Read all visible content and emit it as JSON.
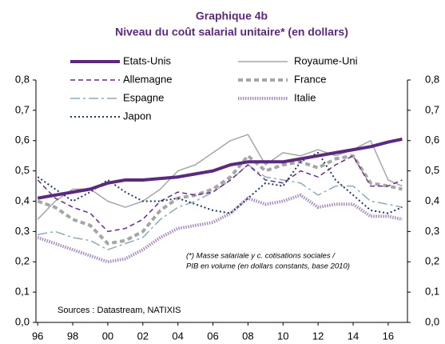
{
  "chart_data": {
    "type": "line",
    "title": "Graphique 4b",
    "subtitle": "Niveau du coût salarial unitaire* (en dollars)",
    "annotations": [
      "(*) Masse salariale y c. cotisations sociales /",
      "PIB en volume (en dollars constants, base 2010)"
    ],
    "source": "Sources : Datastream, NATIXIS",
    "x": [
      1996,
      1997,
      1998,
      1999,
      2000,
      2001,
      2002,
      2003,
      2004,
      2005,
      2006,
      2007,
      2008,
      2009,
      2010,
      2011,
      2012,
      2013,
      2014,
      2015,
      2016,
      2016.8
    ],
    "xlim": [
      1995.9,
      2017.1
    ],
    "xticks": [
      {
        "value": 1996,
        "label": "96"
      },
      {
        "value": 1998,
        "label": "98"
      },
      {
        "value": 2000,
        "label": "00"
      },
      {
        "value": 2002,
        "label": "02"
      },
      {
        "value": 2004,
        "label": "04"
      },
      {
        "value": 2006,
        "label": "06"
      },
      {
        "value": 2008,
        "label": "08"
      },
      {
        "value": 2010,
        "label": "10"
      },
      {
        "value": 2012,
        "label": "12"
      },
      {
        "value": 2014,
        "label": "14"
      },
      {
        "value": 2016,
        "label": "16"
      }
    ],
    "ylim": [
      0,
      0.8
    ],
    "yticks": [
      {
        "value": 0,
        "label": "0,0"
      },
      {
        "value": 0.1,
        "label": "0,1"
      },
      {
        "value": 0.2,
        "label": "0,2"
      },
      {
        "value": 0.3,
        "label": "0,3"
      },
      {
        "value": 0.4,
        "label": "0,4"
      },
      {
        "value": 0.5,
        "label": "0,5"
      },
      {
        "value": 0.6,
        "label": "0,6"
      },
      {
        "value": 0.7,
        "label": "0,7"
      },
      {
        "value": 0.8,
        "label": "0,8"
      }
    ],
    "y2lim": [
      0,
      0.8
    ],
    "y2ticks": [
      {
        "value": 0,
        "label": "0,0"
      },
      {
        "value": 0.1,
        "label": "0,1"
      },
      {
        "value": 0.2,
        "label": "0,2"
      },
      {
        "value": 0.3,
        "label": "0,3"
      },
      {
        "value": 0.4,
        "label": "0,4"
      },
      {
        "value": 0.5,
        "label": "0,5"
      },
      {
        "value": 0.6,
        "label": "0,6"
      },
      {
        "value": 0.7,
        "label": "0,7"
      },
      {
        "value": 0.8,
        "label": "0,8"
      }
    ],
    "grid": false,
    "legend": "top",
    "series": [
      {
        "name": "Etats-Unis",
        "color": "#5b2a7e",
        "style": "solid",
        "width": 4,
        "values": [
          0.41,
          0.42,
          0.43,
          0.44,
          0.46,
          0.47,
          0.47,
          0.475,
          0.48,
          0.49,
          0.5,
          0.52,
          0.53,
          0.53,
          0.53,
          0.54,
          0.55,
          0.56,
          0.57,
          0.58,
          0.595,
          0.605
        ]
      },
      {
        "name": "Royaume-Uni",
        "color": "#a6a6a6",
        "style": "solid",
        "width": 1.5,
        "values": [
          0.34,
          0.4,
          0.44,
          0.44,
          0.4,
          0.38,
          0.4,
          0.44,
          0.5,
          0.52,
          0.56,
          0.6,
          0.62,
          0.52,
          0.56,
          0.55,
          0.57,
          0.55,
          0.57,
          0.6,
          0.47,
          0.45
        ]
      },
      {
        "name": "Allemagne",
        "color": "#6b2d84",
        "style": "dashed",
        "width": 1.5,
        "values": [
          0.47,
          0.41,
          0.38,
          0.36,
          0.3,
          0.31,
          0.34,
          0.4,
          0.43,
          0.42,
          0.43,
          0.47,
          0.52,
          0.47,
          0.46,
          0.5,
          0.48,
          0.52,
          0.55,
          0.45,
          0.45,
          0.47
        ]
      },
      {
        "name": "France",
        "color": "#a6a6a6",
        "style": "dashed",
        "width": 4,
        "values": [
          0.4,
          0.38,
          0.34,
          0.32,
          0.26,
          0.27,
          0.3,
          0.37,
          0.41,
          0.42,
          0.44,
          0.48,
          0.55,
          0.5,
          0.52,
          0.53,
          0.51,
          0.54,
          0.55,
          0.46,
          0.45,
          0.44
        ]
      },
      {
        "name": "Espagne",
        "color": "#8faab8",
        "style": "dash-dot",
        "width": 1.5,
        "values": [
          0.29,
          0.3,
          0.28,
          0.27,
          0.24,
          0.26,
          0.28,
          0.34,
          0.38,
          0.4,
          0.43,
          0.47,
          0.52,
          0.48,
          0.47,
          0.46,
          0.42,
          0.45,
          0.45,
          0.4,
          0.39,
          0.38
        ]
      },
      {
        "name": "Italie",
        "color": "#a98cc4",
        "style": "hatched",
        "width": 4,
        "values": [
          0.28,
          0.26,
          0.24,
          0.22,
          0.2,
          0.21,
          0.24,
          0.28,
          0.31,
          0.32,
          0.33,
          0.36,
          0.41,
          0.39,
          0.4,
          0.42,
          0.38,
          0.39,
          0.39,
          0.35,
          0.35,
          0.34
        ]
      },
      {
        "name": "Japon",
        "color": "#1f3864",
        "style": "dotted",
        "width": 2,
        "values": [
          0.48,
          0.44,
          0.4,
          0.43,
          0.47,
          0.43,
          0.4,
          0.4,
          0.41,
          0.39,
          0.37,
          0.36,
          0.41,
          0.46,
          0.45,
          0.53,
          0.56,
          0.47,
          0.42,
          0.37,
          0.36,
          0.38
        ]
      }
    ]
  }
}
